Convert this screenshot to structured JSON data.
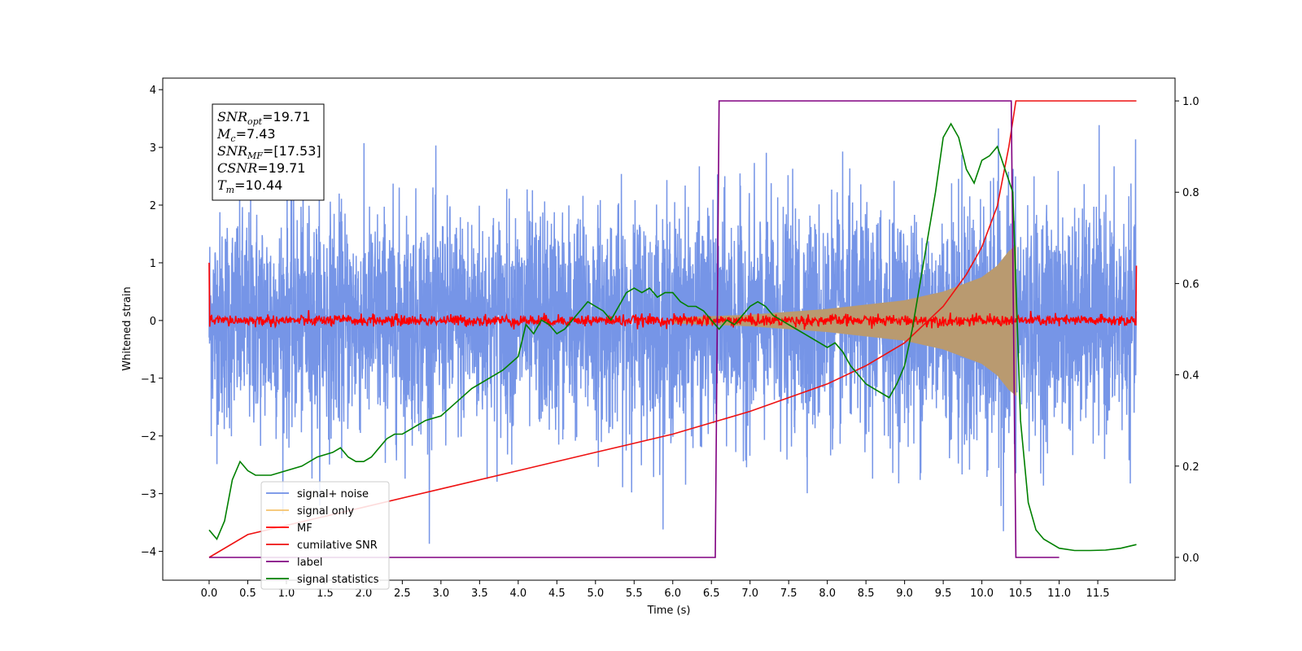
{
  "chart_data": {
    "type": "line",
    "title": "",
    "xlabel": "Time (s)",
    "ylabel": "Whitened strain",
    "xlim": [
      -0.6,
      12.5
    ],
    "ylim": [
      -4.5,
      4.2
    ],
    "y2lim": [
      -0.05,
      1.05
    ],
    "xticks": [
      "0.0",
      "0.5",
      "1.0",
      "1.5",
      "2.0",
      "2.5",
      "3.0",
      "3.5",
      "4.0",
      "4.5",
      "5.0",
      "5.5",
      "6.0",
      "6.5",
      "7.0",
      "7.5",
      "8.0",
      "8.5",
      "9.0",
      "9.5",
      "10.0",
      "10.5",
      "11.0",
      "11.5"
    ],
    "yticks": [
      4,
      3,
      2,
      1,
      0,
      -1,
      -2,
      -3,
      -4
    ],
    "y2ticks": [
      0.0,
      0.2,
      0.4,
      0.6,
      0.8,
      1.0
    ],
    "grid": false,
    "legend_position": "lower-left",
    "legend": [
      "signal+ noise",
      "signal only",
      "MF",
      "cumilative SNR",
      "label",
      "signal statistics"
    ],
    "colors": {
      "signal_noise": "#6f8fe6",
      "signal_only": "#b99a70",
      "signal_only_legend": "#f5c26b",
      "mf": "#ff0000",
      "cumulative": "#ee1111",
      "label": "#800080",
      "statistics": "#008000"
    },
    "annotation": [
      {
        "sym": "SNR",
        "sub": "opt",
        "val": "=19.71"
      },
      {
        "sym": "M",
        "sub": "c",
        "val": "=7.43"
      },
      {
        "sym": "SNR",
        "sub": "MF",
        "val": "=[17.53]"
      },
      {
        "sym": "CSNR",
        "sub": "",
        "val": "=19.71"
      },
      {
        "sym": "T",
        "sub": "m",
        "val": "=10.44"
      }
    ],
    "series": [
      {
        "name": "signal+ noise",
        "axis": "left",
        "x_range": [
          0.0,
          12.0
        ],
        "typical_range": [
          -1.5,
          1.8
        ],
        "extremes": [
          -4.15,
          3.8
        ]
      },
      {
        "name": "signal only",
        "axis": "left",
        "envelope": {
          "x": [
            6.0,
            7.0,
            8.0,
            9.0,
            9.5,
            10.0,
            10.2,
            10.35,
            10.44,
            10.5
          ],
          "amp": [
            0.05,
            0.1,
            0.2,
            0.35,
            0.5,
            0.75,
            0.95,
            1.2,
            1.3,
            0.0
          ]
        }
      },
      {
        "name": "MF",
        "axis": "left",
        "x_range": [
          0.0,
          12.0
        ],
        "start": 1.0,
        "end": 0.95,
        "baseline": 0.0
      },
      {
        "name": "cumilative SNR",
        "axis": "right",
        "x": [
          0.0,
          0.5,
          1.0,
          2.0,
          3.0,
          4.0,
          5.0,
          6.0,
          7.0,
          7.5,
          8.0,
          8.5,
          9.0,
          9.5,
          9.8,
          10.0,
          10.2,
          10.35,
          10.44,
          10.5,
          12.0
        ],
        "y": [
          0.0,
          0.05,
          0.07,
          0.11,
          0.15,
          0.19,
          0.23,
          0.27,
          0.32,
          0.35,
          0.38,
          0.42,
          0.47,
          0.55,
          0.62,
          0.68,
          0.77,
          0.9,
          1.0,
          1.0,
          1.0
        ]
      },
      {
        "name": "label",
        "axis": "right",
        "x": [
          0.0,
          6.55,
          6.6,
          10.38,
          10.44,
          11.0
        ],
        "y": [
          0,
          0,
          1,
          1,
          0,
          0
        ]
      },
      {
        "name": "signal statistics",
        "axis": "right",
        "x": [
          0.0,
          0.1,
          0.2,
          0.3,
          0.4,
          0.5,
          0.6,
          0.7,
          0.8,
          1.0,
          1.2,
          1.4,
          1.6,
          1.7,
          1.8,
          1.9,
          2.0,
          2.1,
          2.2,
          2.3,
          2.4,
          2.5,
          2.6,
          2.8,
          3.0,
          3.2,
          3.4,
          3.6,
          3.8,
          4.0,
          4.1,
          4.2,
          4.3,
          4.4,
          4.5,
          4.6,
          4.7,
          4.8,
          4.9,
          5.0,
          5.1,
          5.2,
          5.3,
          5.4,
          5.5,
          5.6,
          5.7,
          5.8,
          5.9,
          6.0,
          6.1,
          6.2,
          6.3,
          6.4,
          6.5,
          6.6,
          6.7,
          6.8,
          6.9,
          7.0,
          7.1,
          7.2,
          7.3,
          7.4,
          7.5,
          7.6,
          7.7,
          7.8,
          7.9,
          8.0,
          8.1,
          8.2,
          8.3,
          8.4,
          8.5,
          8.6,
          8.7,
          8.8,
          8.9,
          9.0,
          9.1,
          9.2,
          9.3,
          9.4,
          9.5,
          9.6,
          9.7,
          9.8,
          9.9,
          10.0,
          10.1,
          10.2,
          10.3,
          10.4,
          10.5,
          10.6,
          10.7,
          10.8,
          10.9,
          11.0,
          11.2,
          11.4,
          11.6,
          11.8,
          12.0
        ],
        "y": [
          0.06,
          0.04,
          0.08,
          0.17,
          0.21,
          0.19,
          0.18,
          0.18,
          0.18,
          0.19,
          0.2,
          0.22,
          0.23,
          0.24,
          0.22,
          0.21,
          0.21,
          0.22,
          0.24,
          0.26,
          0.27,
          0.27,
          0.28,
          0.3,
          0.31,
          0.34,
          0.37,
          0.39,
          0.41,
          0.44,
          0.51,
          0.49,
          0.52,
          0.51,
          0.49,
          0.5,
          0.52,
          0.54,
          0.56,
          0.55,
          0.54,
          0.52,
          0.55,
          0.58,
          0.59,
          0.58,
          0.59,
          0.57,
          0.58,
          0.58,
          0.56,
          0.55,
          0.55,
          0.54,
          0.52,
          0.5,
          0.52,
          0.51,
          0.53,
          0.55,
          0.56,
          0.55,
          0.53,
          0.52,
          0.51,
          0.5,
          0.49,
          0.48,
          0.47,
          0.46,
          0.47,
          0.45,
          0.42,
          0.4,
          0.38,
          0.37,
          0.36,
          0.35,
          0.38,
          0.42,
          0.5,
          0.6,
          0.7,
          0.8,
          0.92,
          0.95,
          0.92,
          0.85,
          0.82,
          0.87,
          0.88,
          0.9,
          0.85,
          0.8,
          0.3,
          0.12,
          0.06,
          0.04,
          0.03,
          0.02,
          0.015,
          0.015,
          0.016,
          0.02,
          0.028
        ]
      }
    ]
  }
}
